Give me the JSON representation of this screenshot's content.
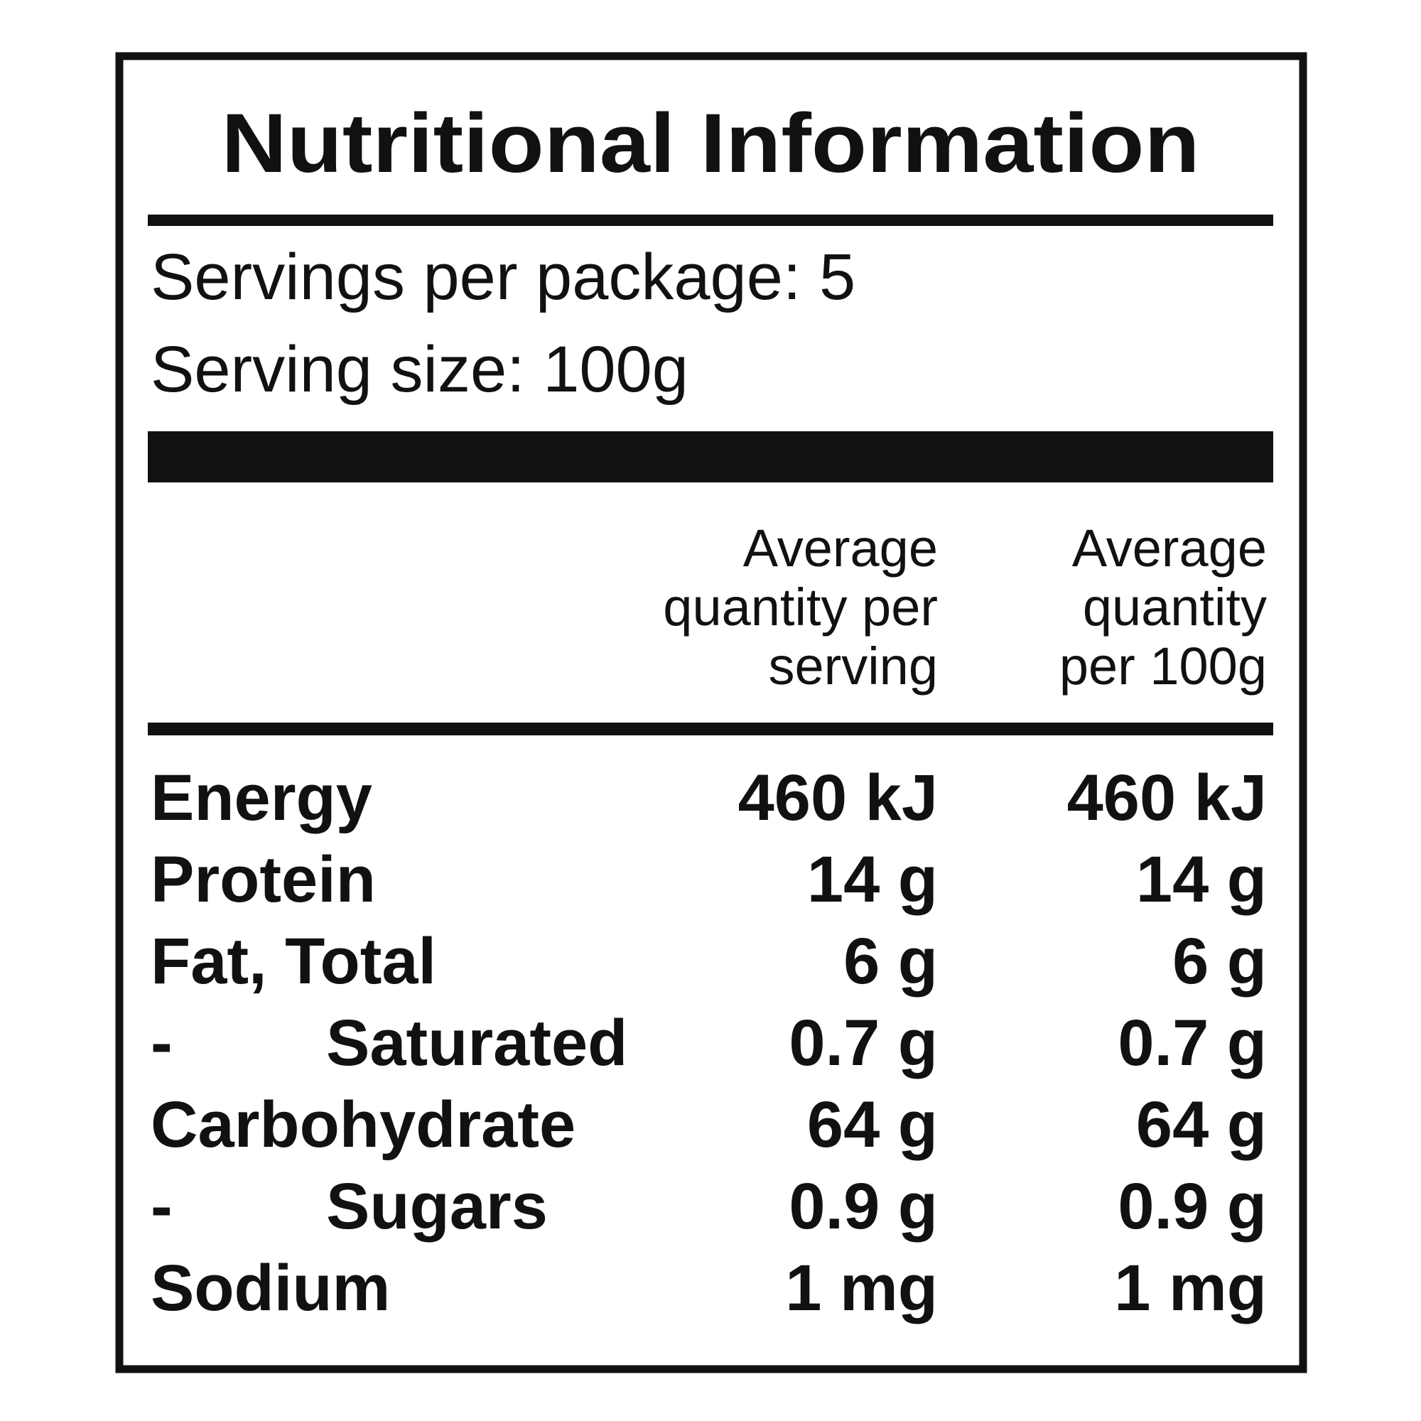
{
  "title": "Nutritional Information",
  "servings_per_package": "Servings per package: 5",
  "serving_size": "Serving size: 100g",
  "columns": [
    [
      "Average",
      "quantity per",
      "serving"
    ],
    [
      "Average",
      "quantity",
      "per 100g"
    ]
  ],
  "rows": [
    {
      "label": "Energy",
      "per_serving": "460 kJ",
      "per_100g": "460 kJ"
    },
    {
      "label": "Protein",
      "per_serving": "14 g",
      "per_100g": "14 g"
    },
    {
      "label": "Fat, Total",
      "per_serving": "6 g",
      "per_100g": "6 g"
    },
    {
      "marker": "-",
      "label": "Saturated",
      "per_serving": "0.7 g",
      "per_100g": "0.7 g"
    },
    {
      "label": "Carbohydrate",
      "per_serving": "64 g",
      "per_100g": "64 g"
    },
    {
      "marker": "-",
      "label": "Sugars",
      "per_serving": "0.9 g",
      "per_100g": "0.9 g"
    },
    {
      "label": "Sodium",
      "per_serving": "1 mg",
      "per_100g": "1 mg"
    }
  ]
}
